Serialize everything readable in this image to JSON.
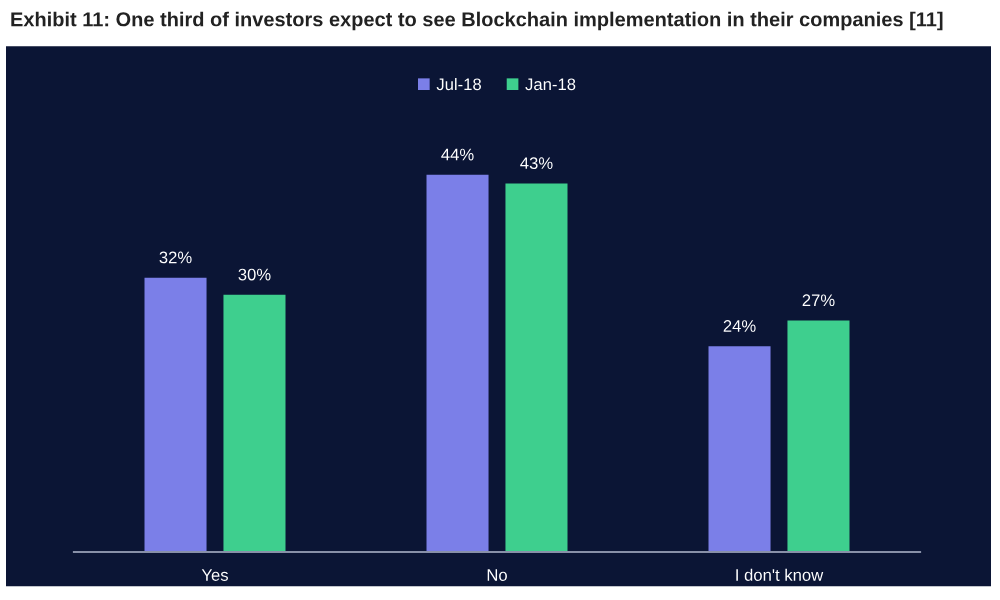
{
  "chart_data": {
    "type": "bar",
    "title": "Exhibit 11: One third of investors expect to see Blockchain implementation in their companies [11]",
    "categories": [
      "Yes",
      "No",
      "I don't know"
    ],
    "series": [
      {
        "name": "Jul-18",
        "color": "#7b7fe8",
        "values": [
          32,
          44,
          24
        ],
        "value_labels": [
          "32%",
          "44%",
          "24%"
        ]
      },
      {
        "name": "Jan-18",
        "color": "#3ecf8e",
        "values": [
          30,
          43,
          27
        ],
        "value_labels": [
          "30%",
          "43%",
          "27%"
        ]
      }
    ],
    "legend": "top"
  }
}
